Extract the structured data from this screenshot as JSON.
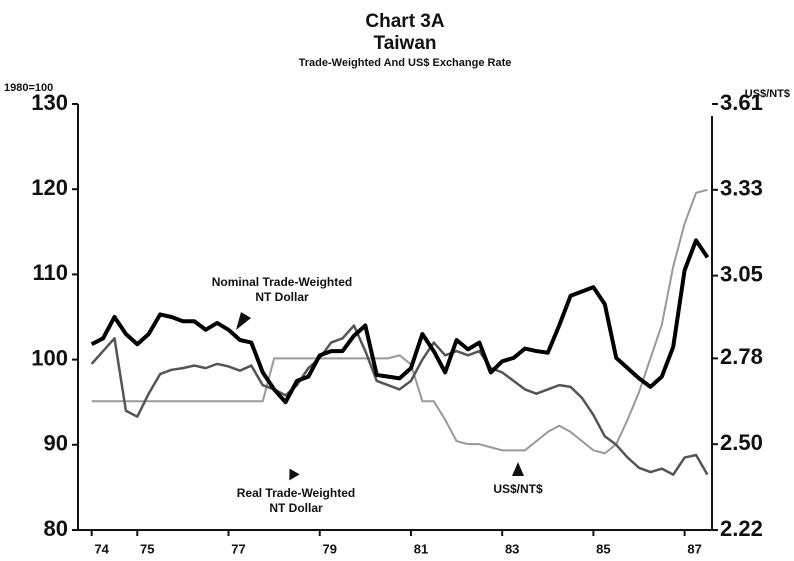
{
  "chart_data": {
    "type": "line",
    "title": "Chart 3A",
    "subtitle": "Taiwan",
    "subtitle2": "Trade-Weighted And US$ Exchange Rate",
    "ylabel": "1980=100",
    "y2label": "US$/NT$",
    "annotations": [
      "Nominal Trade-Weighted",
      "NT Dollar",
      "Real Trade-Weighted",
      "NT Dollar",
      "US$/NT$"
    ],
    "x": [
      74,
      74.25,
      74.5,
      74.75,
      75,
      75.25,
      75.5,
      75.75,
      76,
      76.25,
      76.5,
      76.75,
      77,
      77.25,
      77.5,
      77.75,
      78,
      78.25,
      78.5,
      78.75,
      79,
      79.25,
      79.5,
      79.75,
      80,
      80.25,
      80.5,
      80.75,
      81,
      81.25,
      81.5,
      81.75,
      82,
      82.25,
      82.5,
      82.75,
      83,
      83.25,
      83.5,
      83.75,
      84,
      84.25,
      84.5,
      84.75,
      85,
      85.25,
      85.5,
      85.75,
      86,
      86.25,
      86.5,
      86.75,
      87,
      87.25,
      87.5
    ],
    "series": [
      {
        "name": "Nominal Trade-Weighted NT Dollar",
        "color": "#000000",
        "width": 4,
        "values": [
          101.8,
          102.5,
          105,
          103,
          101.8,
          103,
          105.3,
          105,
          104.5,
          104.5,
          103.5,
          104.3,
          103.5,
          102.3,
          102,
          98.5,
          96.5,
          95,
          97.5,
          98,
          100.5,
          101,
          101,
          102.8,
          104,
          98.2,
          98,
          97.8,
          99,
          103,
          101,
          98.5,
          102.3,
          101.2,
          102,
          98.5,
          99.8,
          100.2,
          101.3,
          101,
          100.8,
          104,
          107.5,
          108,
          108.5,
          106.5,
          100.2,
          99,
          97.8,
          96.8,
          98,
          101.5,
          110.5,
          114,
          112
        ]
      },
      {
        "name": "Real Trade-Weighted NT Dollar",
        "color": "#555555",
        "width": 2.5,
        "values": [
          99.5,
          101,
          102.5,
          94,
          93.3,
          96,
          98.3,
          98.8,
          99,
          99.3,
          99,
          99.5,
          99.2,
          98.7,
          99.3,
          97,
          96.5,
          95.8,
          97,
          99,
          100.2,
          102,
          102.5,
          104,
          101,
          97.5,
          97,
          96.5,
          97.5,
          100,
          102,
          100.5,
          101,
          100.5,
          101,
          99,
          98.5,
          97.5,
          96.5,
          96,
          96.5,
          97,
          96.8,
          95.5,
          93.5,
          91,
          90,
          88.5,
          87.3,
          86.8,
          87.2,
          86.5,
          88.5,
          88.8,
          86.5
        ]
      },
      {
        "name": "US$/NT$",
        "color": "#999999",
        "width": 2,
        "axis": "y2",
        "values": [
          2.64,
          2.64,
          2.64,
          2.64,
          2.64,
          2.64,
          2.64,
          2.64,
          2.64,
          2.64,
          2.64,
          2.64,
          2.64,
          2.64,
          2.64,
          2.64,
          2.78,
          2.78,
          2.78,
          2.78,
          2.78,
          2.78,
          2.78,
          2.78,
          2.78,
          2.78,
          2.78,
          2.79,
          2.76,
          2.64,
          2.64,
          2.58,
          2.51,
          2.5,
          2.5,
          2.49,
          2.48,
          2.48,
          2.48,
          2.51,
          2.54,
          2.56,
          2.54,
          2.51,
          2.48,
          2.47,
          2.5,
          2.58,
          2.67,
          2.78,
          2.89,
          3.08,
          3.22,
          3.32,
          3.33
        ]
      }
    ],
    "xlim": [
      73.7,
      87.6
    ],
    "xticks": [
      74,
      75,
      77,
      79,
      81,
      83,
      85,
      87
    ],
    "ylim": [
      80,
      130
    ],
    "yticks": [
      80,
      90,
      100,
      110,
      120,
      130
    ],
    "y2lim": [
      2.22,
      3.61
    ],
    "y2ticks": [
      2.22,
      {
        "value": 2.5,
        "label": "2.50"
      },
      2.78,
      3.05,
      3.33,
      3.61
    ]
  }
}
